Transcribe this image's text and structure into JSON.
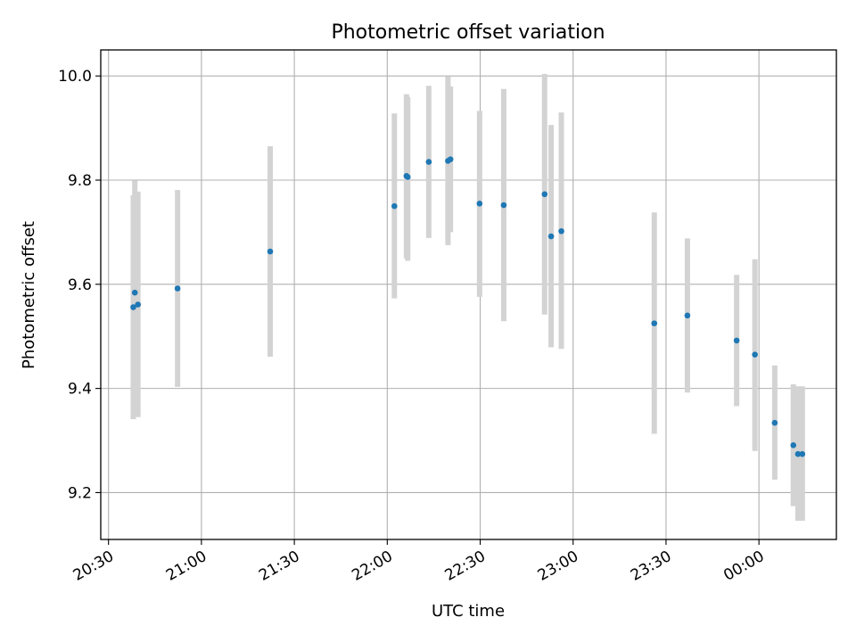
{
  "chart_data": {
    "type": "scatter",
    "title": "Photometric offset variation",
    "xlabel": "UTC time",
    "ylabel": "Photometric offset",
    "x_tick_labels": [
      "20:30",
      "21:00",
      "21:30",
      "22:00",
      "22:30",
      "23:00",
      "23:30",
      "00:00"
    ],
    "x_tick_minutes": [
      0,
      30,
      60,
      90,
      120,
      150,
      180,
      210
    ],
    "xlim_minutes": [
      -2.5,
      235
    ],
    "ylim": [
      9.11,
      10.05
    ],
    "y_ticks": [
      9.2,
      9.4,
      9.6,
      9.8,
      10.0
    ],
    "y_tick_labels": [
      "9.2",
      "9.4",
      "9.6",
      "9.8",
      "10.0"
    ],
    "grid": true,
    "point_color": "#1f77b4",
    "errorbar_color": "#d3d3d3",
    "series": [
      {
        "points": [
          {
            "t": 8.0,
            "y": 9.556,
            "lo": 9.341,
            "hi": 9.771
          },
          {
            "t": 8.5,
            "y": 9.584,
            "lo": 9.369,
            "hi": 9.799
          },
          {
            "t": 9.5,
            "y": 9.561,
            "lo": 9.345,
            "hi": 9.778
          },
          {
            "t": 22.3,
            "y": 9.592,
            "lo": 9.403,
            "hi": 9.781
          },
          {
            "t": 52.2,
            "y": 9.663,
            "lo": 9.461,
            "hi": 9.865
          },
          {
            "t": 92.3,
            "y": 9.75,
            "lo": 9.573,
            "hi": 9.928
          },
          {
            "t": 96.2,
            "y": 9.808,
            "lo": 9.65,
            "hi": 9.965
          },
          {
            "t": 96.6,
            "y": 9.806,
            "lo": 9.645,
            "hi": 9.96
          },
          {
            "t": 103.4,
            "y": 9.835,
            "lo": 9.689,
            "hi": 9.981
          },
          {
            "t": 109.6,
            "y": 9.837,
            "lo": 9.675,
            "hi": 9.999
          },
          {
            "t": 110.4,
            "y": 9.84,
            "lo": 9.7,
            "hi": 9.98
          },
          {
            "t": 119.8,
            "y": 9.755,
            "lo": 9.576,
            "hi": 9.933
          },
          {
            "t": 127.6,
            "y": 9.752,
            "lo": 9.529,
            "hi": 9.975
          },
          {
            "t": 140.8,
            "y": 9.773,
            "lo": 9.542,
            "hi": 10.004
          },
          {
            "t": 142.9,
            "y": 9.692,
            "lo": 9.479,
            "hi": 9.906
          },
          {
            "t": 146.2,
            "y": 9.702,
            "lo": 9.476,
            "hi": 9.93
          },
          {
            "t": 176.2,
            "y": 9.525,
            "lo": 9.313,
            "hi": 9.738
          },
          {
            "t": 186.9,
            "y": 9.54,
            "lo": 9.392,
            "hi": 9.688
          },
          {
            "t": 202.8,
            "y": 9.492,
            "lo": 9.366,
            "hi": 9.618
          },
          {
            "t": 208.7,
            "y": 9.465,
            "lo": 9.28,
            "hi": 9.648
          },
          {
            "t": 215.1,
            "y": 9.334,
            "lo": 9.225,
            "hi": 9.444
          },
          {
            "t": 221.1,
            "y": 9.291,
            "lo": 9.174,
            "hi": 9.408
          },
          {
            "t": 222.6,
            "y": 9.274,
            "lo": 9.146,
            "hi": 9.404
          },
          {
            "t": 224.0,
            "y": 9.274,
            "lo": 9.146,
            "hi": 9.404
          }
        ]
      }
    ]
  }
}
